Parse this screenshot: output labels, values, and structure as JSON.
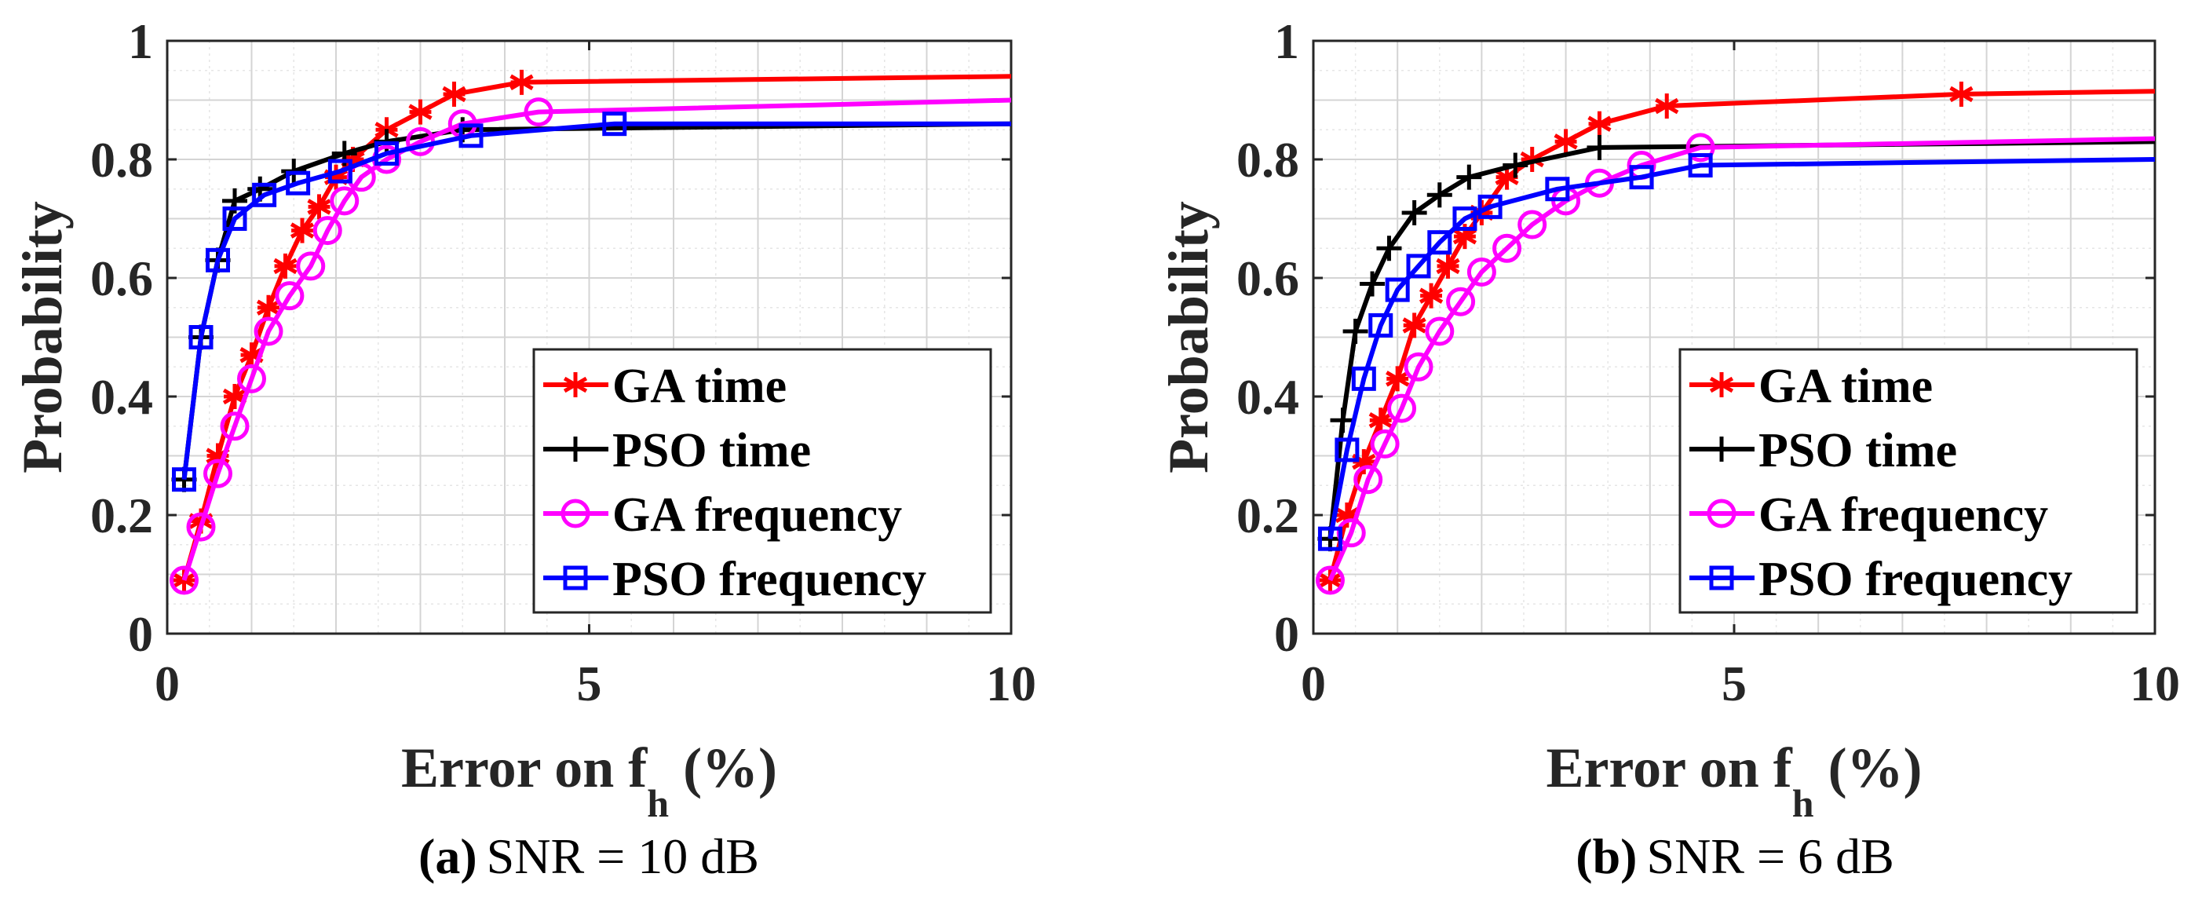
{
  "chart_data": [
    {
      "type": "line",
      "panel": "a",
      "caption_letter": "(a)",
      "caption_text": "SNR = 10 dB",
      "xlabel_main": "Error on f",
      "xlabel_sub": "h",
      "xlabel_tail": " (%)",
      "ylabel": "Probability",
      "xlim": [
        0,
        10
      ],
      "ylim": [
        0,
        1
      ],
      "xticks": [
        "0",
        "5",
        "10"
      ],
      "yticks": [
        "0",
        "0.2",
        "0.4",
        "0.6",
        "0.8",
        "1"
      ],
      "grid": true,
      "legend_position": "bottom-right",
      "series": [
        {
          "name": "GA time",
          "color": "#ff0000",
          "marker": "asterisk",
          "x": [
            0.2,
            0.4,
            0.6,
            0.8,
            1.0,
            1.2,
            1.4,
            1.6,
            1.8,
            2.0,
            2.2,
            2.6,
            3.0,
            3.4,
            4.2,
            10.0
          ],
          "y": [
            0.09,
            0.19,
            0.3,
            0.4,
            0.47,
            0.55,
            0.62,
            0.68,
            0.72,
            0.77,
            0.8,
            0.85,
            0.88,
            0.91,
            0.93,
            0.94
          ]
        },
        {
          "name": "PSO time",
          "color": "#000000",
          "marker": "plus",
          "x": [
            0.2,
            0.4,
            0.6,
            0.8,
            1.1,
            1.5,
            2.1,
            2.6,
            3.5,
            10.0
          ],
          "y": [
            0.26,
            0.5,
            0.63,
            0.73,
            0.75,
            0.78,
            0.81,
            0.83,
            0.85,
            0.86
          ]
        },
        {
          "name": "GA frequency",
          "color": "#ff00ff",
          "marker": "circle",
          "x": [
            0.2,
            0.4,
            0.6,
            0.8,
            1.0,
            1.2,
            1.45,
            1.7,
            1.9,
            2.1,
            2.3,
            2.6,
            3.0,
            3.5,
            4.4,
            10.0
          ],
          "y": [
            0.09,
            0.18,
            0.27,
            0.35,
            0.43,
            0.51,
            0.57,
            0.62,
            0.68,
            0.73,
            0.77,
            0.8,
            0.83,
            0.86,
            0.88,
            0.9
          ]
        },
        {
          "name": "PSO frequency",
          "color": "#0000ff",
          "marker": "square",
          "x": [
            0.2,
            0.4,
            0.6,
            0.8,
            1.15,
            1.55,
            2.05,
            2.6,
            3.6,
            5.3,
            10.0
          ],
          "y": [
            0.26,
            0.5,
            0.63,
            0.7,
            0.74,
            0.76,
            0.78,
            0.81,
            0.84,
            0.86,
            0.86
          ]
        }
      ]
    },
    {
      "type": "line",
      "panel": "b",
      "caption_letter": "(b)",
      "caption_text": "SNR = 6 dB",
      "xlabel_main": "Error on f",
      "xlabel_sub": "h",
      "xlabel_tail": " (%)",
      "ylabel": "Probability",
      "xlim": [
        0,
        10
      ],
      "ylim": [
        0,
        1
      ],
      "xticks": [
        "0",
        "5",
        "10"
      ],
      "yticks": [
        "0",
        "0.2",
        "0.4",
        "0.6",
        "0.8",
        "1"
      ],
      "grid": true,
      "legend_position": "bottom-right",
      "series": [
        {
          "name": "GA time",
          "color": "#ff0000",
          "marker": "asterisk",
          "x": [
            0.2,
            0.4,
            0.6,
            0.8,
            1.0,
            1.2,
            1.4,
            1.6,
            1.8,
            2.0,
            2.3,
            2.6,
            3.0,
            3.4,
            4.2,
            7.7,
            10.0
          ],
          "y": [
            0.09,
            0.2,
            0.29,
            0.36,
            0.43,
            0.52,
            0.57,
            0.62,
            0.67,
            0.71,
            0.77,
            0.8,
            0.83,
            0.86,
            0.89,
            0.91,
            0.915
          ]
        },
        {
          "name": "PSO time",
          "color": "#000000",
          "marker": "plus",
          "x": [
            0.2,
            0.35,
            0.5,
            0.7,
            0.9,
            1.2,
            1.5,
            1.85,
            2.4,
            3.4,
            10.0
          ],
          "y": [
            0.16,
            0.36,
            0.51,
            0.59,
            0.65,
            0.71,
            0.74,
            0.77,
            0.79,
            0.82,
            0.83
          ]
        },
        {
          "name": "GA frequency",
          "color": "#ff00ff",
          "marker": "circle",
          "x": [
            0.2,
            0.45,
            0.65,
            0.85,
            1.05,
            1.25,
            1.5,
            1.75,
            2.0,
            2.3,
            2.6,
            3.0,
            3.4,
            3.9,
            4.6,
            10.0
          ],
          "y": [
            0.09,
            0.17,
            0.26,
            0.32,
            0.38,
            0.45,
            0.51,
            0.56,
            0.61,
            0.65,
            0.69,
            0.73,
            0.76,
            0.79,
            0.82,
            0.835
          ]
        },
        {
          "name": "PSO frequency",
          "color": "#0000ff",
          "marker": "square",
          "x": [
            0.2,
            0.4,
            0.6,
            0.8,
            1.0,
            1.25,
            1.5,
            1.8,
            2.1,
            2.9,
            3.9,
            4.6,
            10.0
          ],
          "y": [
            0.16,
            0.31,
            0.43,
            0.52,
            0.58,
            0.62,
            0.66,
            0.7,
            0.72,
            0.75,
            0.77,
            0.79,
            0.8
          ]
        }
      ]
    }
  ]
}
